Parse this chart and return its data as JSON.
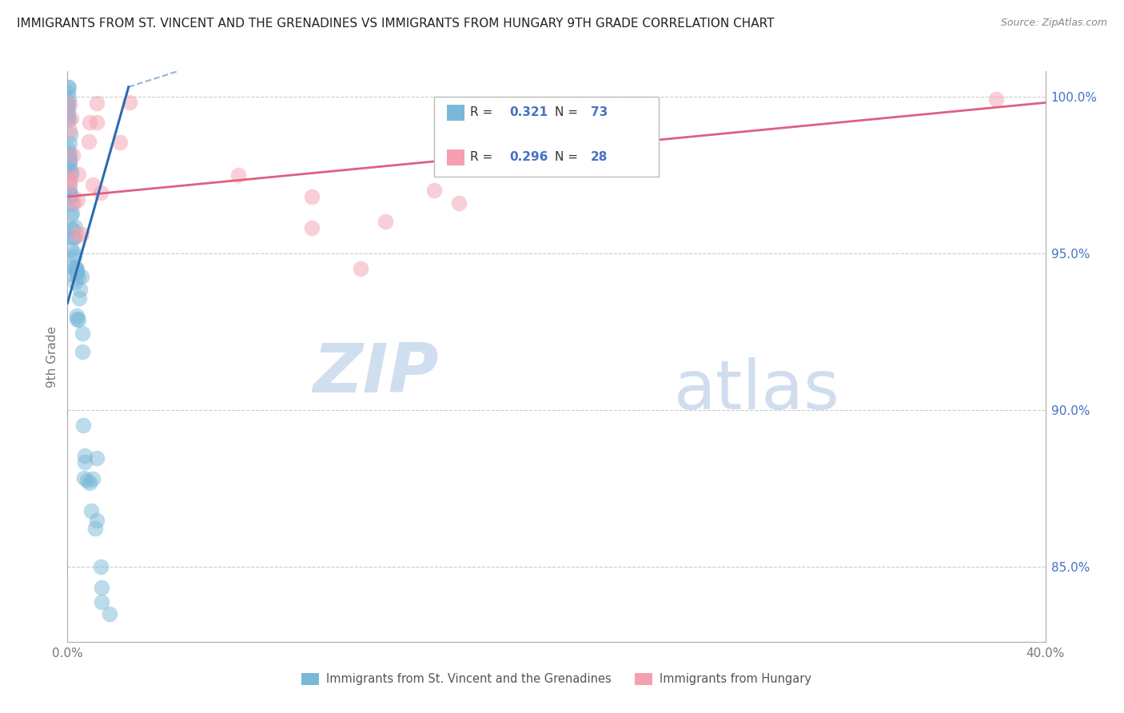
{
  "title": "IMMIGRANTS FROM ST. VINCENT AND THE GRENADINES VS IMMIGRANTS FROM HUNGARY 9TH GRADE CORRELATION CHART",
  "source": "Source: ZipAtlas.com",
  "ylabel": "9th Grade",
  "xlim": [
    0.0,
    0.4
  ],
  "ylim": [
    0.826,
    1.008
  ],
  "ytick_vals": [
    0.85,
    0.9,
    0.95,
    1.0
  ],
  "ytick_labels": [
    "85.0%",
    "90.0%",
    "95.0%",
    "100.0%"
  ],
  "legend_r1_val": "0.321",
  "legend_n1_val": "73",
  "legend_r2_val": "0.296",
  "legend_n2_val": "28",
  "blue_color": "#7ab8d9",
  "pink_color": "#f4a0b0",
  "blue_line_color": "#2b6cb0",
  "pink_line_color": "#e06080",
  "watermark_zip": "ZIP",
  "watermark_atlas": "atlas",
  "grid_color": "#cccccc",
  "axis_color": "#aaaaaa",
  "tick_label_color": "#777777",
  "right_tick_color": "#4472c4",
  "title_color": "#222222",
  "source_color": "#888888",
  "legend_text_color": "#333333",
  "legend_val_color": "#4472c4"
}
